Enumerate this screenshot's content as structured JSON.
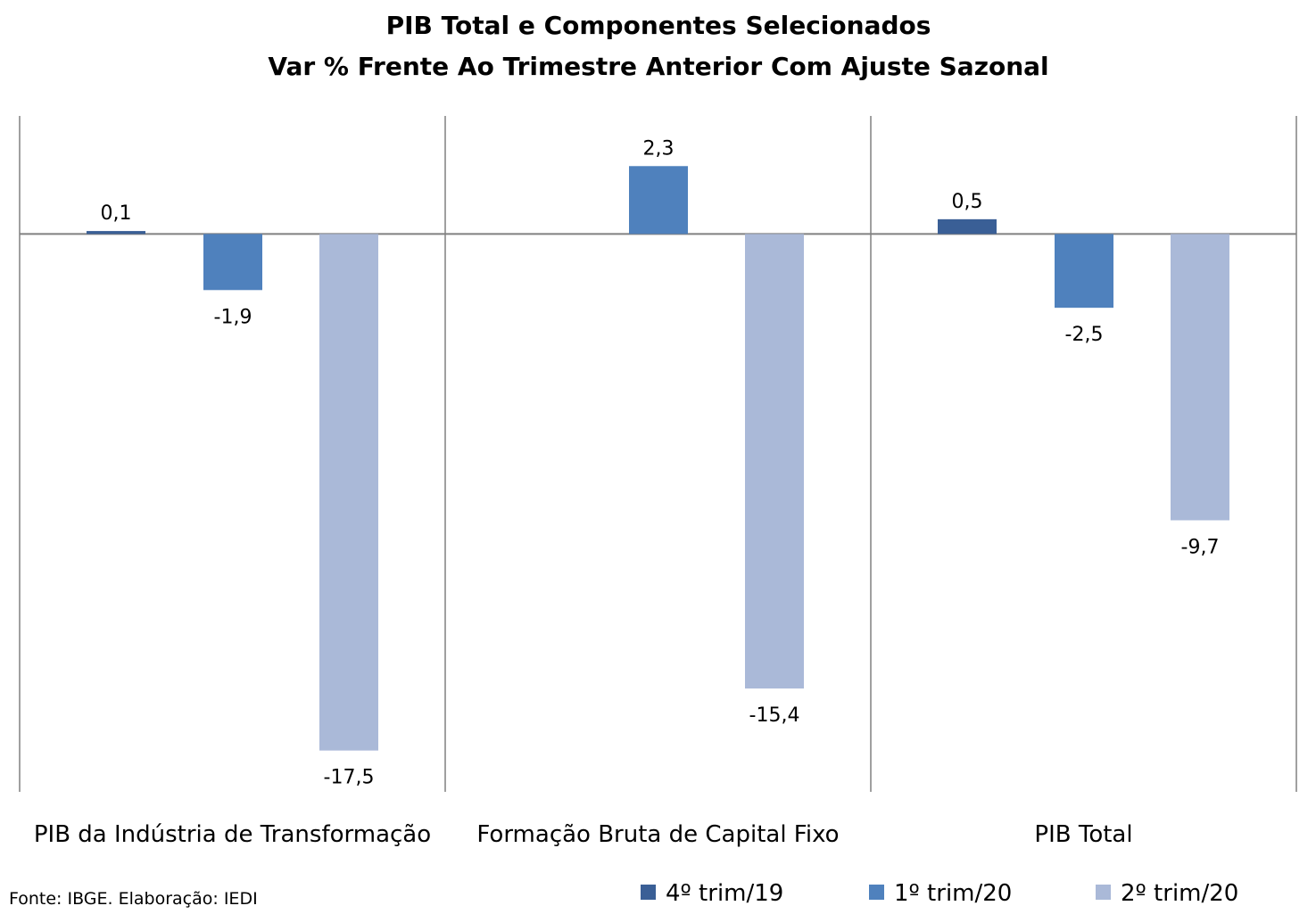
{
  "chart_data": {
    "type": "bar",
    "title": "PIB Total e Componentes Selecionados",
    "subtitle": "Var % Frente Ao Trimestre Anterior Com Ajuste Sazonal",
    "categories": [
      "PIB da Indústria de Transformação",
      "Formação Bruta de Capital Fixo",
      "PIB Total"
    ],
    "series": [
      {
        "name": "4º trim/19",
        "color": "#3a5f96",
        "values": [
          0.1,
          null,
          0.5
        ]
      },
      {
        "name": "1º trim/20",
        "color": "#4f81bd",
        "values": [
          -1.9,
          2.3,
          -2.5
        ]
      },
      {
        "name": "2º trim/20",
        "color": "#aab9d8",
        "values": [
          -17.5,
          -15.4,
          -9.7
        ]
      }
    ],
    "data_labels": [
      [
        "0,1",
        "",
        "0,5"
      ],
      [
        "-1,9",
        "2,3",
        "-2,5"
      ],
      [
        "-17,5",
        "-15,4",
        "-9,7"
      ]
    ],
    "ylim": [
      -18.9,
      4.0
    ],
    "grid": false,
    "legend_position": "bottom-right",
    "source": "Fonte: IBGE. Elaboração: IEDI"
  }
}
